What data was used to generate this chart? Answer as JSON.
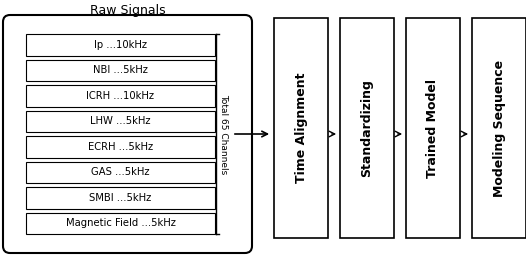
{
  "title": "Raw Signals",
  "signal_labels": [
    "Ip ...10kHz",
    "NBI ...5kHz",
    "ICRH ...10kHz",
    "LHW ...5kHz",
    "ECRH ...5kHz",
    "GAS ...5kHz",
    "SMBI ...5kHz",
    "Magnetic Field ...5kHz"
  ],
  "side_label": "Total 65 Channels",
  "box_labels": [
    "Time Alignment",
    "Standardizing",
    "Trained Model",
    "Modeling Sequence"
  ],
  "bg_color": "#ffffff",
  "box_edge_color": "#000000",
  "text_color": "#000000",
  "fig_width": 5.26,
  "fig_height": 2.56,
  "dpi": 100
}
